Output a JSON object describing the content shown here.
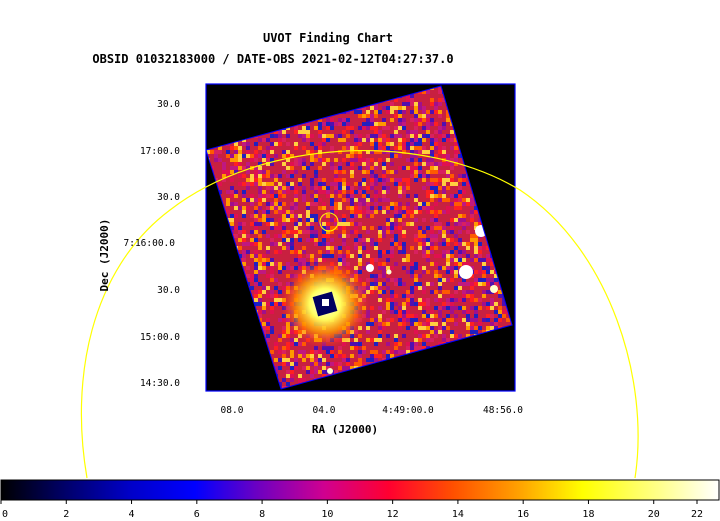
{
  "chart_data": {
    "type": "heatmap",
    "title": "UVOT Finding Chart",
    "subtitle": "OBSID 01032183000 / DATE-OBS 2021-02-12T04:27:37.0",
    "xlabel": "RA (J2000)",
    "ylabel": "Dec (J2000)",
    "x_ticks": [
      "08.0",
      "04.0",
      "4:49:00.0",
      "48:56.0"
    ],
    "y_ticks": [
      "30.0",
      "17:00.0",
      "30.0",
      "7:16:00.0",
      "30.0",
      "15:00.0",
      "14:30.0"
    ],
    "colorbar": {
      "range": [
        0,
        22
      ],
      "ticks": [
        "0",
        "2",
        "4",
        "6",
        "8",
        "10",
        "12",
        "14",
        "16",
        "18",
        "20",
        "22"
      ]
    },
    "colormap": [
      "#000000",
      "#000080",
      "#0000ff",
      "#8000c0",
      "#ff0080",
      "#ff0000",
      "#ff8000",
      "#ffff00",
      "#ffffff"
    ],
    "overlay_color": "#ffff00",
    "frame_color": "#0000ff"
  }
}
